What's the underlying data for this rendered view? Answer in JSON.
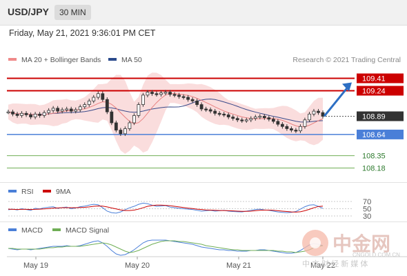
{
  "header": {
    "symbol": "USD/JPY",
    "timeframe": "30 MIN"
  },
  "datetime": "Friday, May 21, 2021 9:36:01 PM CET",
  "colors": {
    "resistance": "#cc0000",
    "pivot": "#4a7fd8",
    "support": "#6fae55",
    "band": "#f7c6c6",
    "ma20": "#e88080",
    "ma50": "#3a4a8a",
    "price_tag": "#333333",
    "arrow": "#2d6fc4"
  },
  "chart_data": {
    "type": "line",
    "title": "",
    "legend": [
      {
        "name": "MA 20 + Bollinger Bands",
        "color": "#f08a8a"
      },
      {
        "name": "MA 50",
        "color": "#2b4a8c"
      }
    ],
    "credit": "Research © 2021 Trading Central",
    "ylim": [
      108.1,
      109.5
    ],
    "x_labels": [
      "May 19",
      "May 20",
      "May 21",
      "May 22"
    ],
    "price": [
      108.95,
      108.92,
      108.9,
      108.93,
      108.91,
      108.88,
      108.92,
      108.9,
      108.94,
      108.97,
      109.0,
      108.96,
      108.98,
      108.99,
      108.96,
      108.98,
      109.02,
      109.05,
      109.1,
      109.15,
      109.2,
      109.12,
      108.95,
      108.8,
      108.7,
      108.65,
      108.72,
      108.8,
      108.9,
      109.05,
      109.18,
      109.22,
      109.2,
      109.19,
      109.21,
      109.22,
      109.19,
      109.18,
      109.16,
      109.15,
      109.12,
      109.1,
      109.05,
      108.99,
      108.98,
      108.96,
      108.93,
      108.92,
      108.91,
      108.88,
      108.86,
      108.84,
      108.83,
      108.84,
      108.86,
      108.88,
      108.89,
      108.87,
      108.85,
      108.82,
      108.78,
      108.75,
      108.72,
      108.7,
      108.69,
      108.75,
      108.84,
      108.92,
      108.96,
      108.94,
      108.89
    ],
    "levels": {
      "resistance": [
        109.41,
        109.24
      ],
      "last": 108.89,
      "pivot": 108.64,
      "support": [
        108.35,
        108.18
      ]
    },
    "target": 109.41,
    "rsi": {
      "legend": [
        {
          "name": "RSI",
          "color": "#4a7fd8"
        },
        {
          "name": "9MA",
          "color": "#cc0000"
        }
      ],
      "ticks": [
        "70",
        "50",
        "30"
      ],
      "values": [
        45,
        48,
        44,
        50,
        46,
        42,
        52,
        49,
        55,
        58,
        60,
        52,
        56,
        58,
        50,
        54,
        60,
        63,
        68,
        72,
        70,
        55,
        38,
        30,
        28,
        34,
        45,
        55,
        62,
        72,
        78,
        75,
        68,
        62,
        64,
        66,
        58,
        55,
        52,
        50,
        48,
        46,
        42,
        38,
        40,
        42,
        38,
        40,
        42,
        38,
        36,
        35,
        34,
        38,
        42,
        46,
        48,
        44,
        42,
        38,
        34,
        32,
        30,
        32,
        36,
        48,
        60,
        68,
        70,
        62,
        52
      ],
      "ma": [
        48,
        47,
        46,
        47,
        47,
        46,
        47,
        48,
        49,
        51,
        53,
        54,
        55,
        55,
        55,
        55,
        56,
        57,
        59,
        62,
        64,
        63,
        59,
        54,
        49,
        44,
        41,
        41,
        43,
        48,
        55,
        62,
        66,
        68,
        68,
        67,
        65,
        62,
        59,
        56,
        53,
        51,
        48,
        46,
        44,
        43,
        42,
        41,
        41,
        40,
        39,
        38,
        37,
        37,
        38,
        40,
        42,
        43,
        43,
        42,
        40,
        38,
        36,
        34,
        33,
        35,
        40,
        47,
        55,
        61,
        63
      ]
    },
    "macd": {
      "legend": [
        {
          "name": "MACD",
          "color": "#4a7fd8"
        },
        {
          "name": "MACD Signal",
          "color": "#6fae55"
        }
      ],
      "values": [
        0,
        -1,
        -2,
        -1,
        -1,
        -2,
        -1,
        0,
        1,
        2,
        3,
        3,
        3,
        4,
        3,
        3,
        4,
        6,
        8,
        10,
        11,
        8,
        3,
        -3,
        -8,
        -10,
        -9,
        -6,
        -2,
        3,
        8,
        11,
        12,
        12,
        12,
        12,
        11,
        10,
        9,
        8,
        7,
        6,
        4,
        2,
        1,
        0,
        -1,
        -2,
        -2,
        -3,
        -3,
        -4,
        -4,
        -4,
        -3,
        -3,
        -2,
        -2,
        -3,
        -4,
        -5,
        -6,
        -7,
        -7,
        -6,
        -3,
        1,
        5,
        7,
        6,
        4
      ],
      "signal": [
        0,
        0,
        -1,
        -1,
        -1,
        -1,
        -1,
        -1,
        0,
        1,
        1,
        2,
        2,
        3,
        3,
        3,
        3,
        4,
        5,
        6,
        7,
        8,
        7,
        5,
        2,
        -1,
        -4,
        -6,
        -5,
        -3,
        0,
        3,
        6,
        8,
        10,
        11,
        11,
        11,
        10,
        10,
        9,
        8,
        7,
        6,
        4,
        3,
        2,
        1,
        0,
        -1,
        -2,
        -2,
        -3,
        -3,
        -3,
        -3,
        -3,
        -3,
        -3,
        -3,
        -4,
        -4,
        -5,
        -5,
        -6,
        -5,
        -4,
        -2,
        1,
        3,
        4
      ]
    }
  },
  "watermark": {
    "brand": "中金网",
    "sub": "中 文 财 经 新 媒 体",
    "url": "CNGOLD.COM.CN"
  }
}
